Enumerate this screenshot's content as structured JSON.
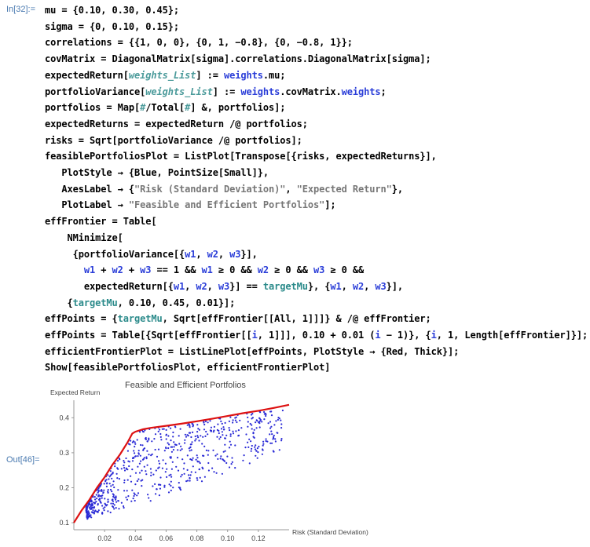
{
  "cell": {
    "in_label": "In[32]:=",
    "out_label": "Out[46]="
  },
  "code_lines": [
    [
      {
        "t": "mu = {0.10, 0.30, 0.45};"
      }
    ],
    [
      {
        "t": "sigma = {0, 0.10, 0.15};"
      }
    ],
    [
      {
        "t": "correlations = {{1, 0, 0}, {0, 1, −0.8}, {0, −0.8, 1}};"
      }
    ],
    [
      {
        "t": "covMatrix = DiagonalMatrix[sigma].correlations.DiagonalMatrix[sigma];"
      }
    ],
    [
      {
        "t": "expectedReturn["
      },
      {
        "t": "weights_List",
        "c": "kw-i"
      },
      {
        "t": "] := "
      },
      {
        "t": "weights",
        "c": "kw-b"
      },
      {
        "t": ".mu;"
      }
    ],
    [
      {
        "t": "portfolioVariance["
      },
      {
        "t": "weights_List",
        "c": "kw-i"
      },
      {
        "t": "] := "
      },
      {
        "t": "weights",
        "c": "kw-b"
      },
      {
        "t": ".covMatrix."
      },
      {
        "t": "weights",
        "c": "kw-b"
      },
      {
        "t": ";"
      }
    ],
    [
      {
        "t": "portfolios = Map["
      },
      {
        "t": "#",
        "c": "kw-i"
      },
      {
        "t": "/Total["
      },
      {
        "t": "#",
        "c": "kw-i"
      },
      {
        "t": "] &, portfolios];"
      }
    ],
    [
      {
        "t": "expectedReturns = expectedReturn /@ portfolios;"
      }
    ],
    [
      {
        "t": "risks = Sqrt[portfolioVariance /@ portfolios];"
      }
    ],
    [
      {
        "t": "feasiblePortfoliosPlot = ListPlot[Transpose[{risks, expectedReturns}],"
      }
    ],
    [
      {
        "t": "   PlotStyle → {Blue, PointSize[Small]},"
      }
    ],
    [
      {
        "t": "   AxesLabel → {"
      },
      {
        "t": "\"Risk (Standard Deviation)\"",
        "c": "str"
      },
      {
        "t": ", "
      },
      {
        "t": "\"Expected Return\"",
        "c": "str"
      },
      {
        "t": "},"
      }
    ],
    [
      {
        "t": "   PlotLabel → "
      },
      {
        "t": "\"Feasible and Efficient Portfolios\"",
        "c": "str"
      },
      {
        "t": "];"
      }
    ],
    [
      {
        "t": "effFrontier = Table["
      }
    ],
    [
      {
        "t": "    NMinimize["
      }
    ],
    [
      {
        "t": "     {portfolioVariance[{"
      },
      {
        "t": "w1",
        "c": "kw-b"
      },
      {
        "t": ", "
      },
      {
        "t": "w2",
        "c": "kw-b"
      },
      {
        "t": ", "
      },
      {
        "t": "w3",
        "c": "kw-b"
      },
      {
        "t": "}],"
      }
    ],
    [
      {
        "t": "       "
      },
      {
        "t": "w1",
        "c": "kw-b"
      },
      {
        "t": " + "
      },
      {
        "t": "w2",
        "c": "kw-b"
      },
      {
        "t": " + "
      },
      {
        "t": "w3",
        "c": "kw-b"
      },
      {
        "t": " == 1 && "
      },
      {
        "t": "w1",
        "c": "kw-b"
      },
      {
        "t": " ≥ 0 && "
      },
      {
        "t": "w2",
        "c": "kw-b"
      },
      {
        "t": " ≥ 0 && "
      },
      {
        "t": "w3",
        "c": "kw-b"
      },
      {
        "t": " ≥ 0 &&"
      }
    ],
    [
      {
        "t": "       expectedReturn[{"
      },
      {
        "t": "w1",
        "c": "kw-b"
      },
      {
        "t": ", "
      },
      {
        "t": "w2",
        "c": "kw-b"
      },
      {
        "t": ", "
      },
      {
        "t": "w3",
        "c": "kw-b"
      },
      {
        "t": "}] == "
      },
      {
        "t": "targetMu",
        "c": "kw-t"
      },
      {
        "t": "}, {"
      },
      {
        "t": "w1",
        "c": "kw-b"
      },
      {
        "t": ", "
      },
      {
        "t": "w2",
        "c": "kw-b"
      },
      {
        "t": ", "
      },
      {
        "t": "w3",
        "c": "kw-b"
      },
      {
        "t": "}],"
      }
    ],
    [
      {
        "t": "    {"
      },
      {
        "t": "targetMu",
        "c": "kw-t"
      },
      {
        "t": ", 0.10, 0.45, 0.01}];"
      }
    ],
    [
      {
        "t": "effPoints = {"
      },
      {
        "t": "targetMu",
        "c": "kw-t"
      },
      {
        "t": ", Sqrt[effFrontier[[All, 1]]]} & /@ effFrontier;"
      }
    ],
    [
      {
        "t": "effPoints = Table[{Sqrt[effFrontier[["
      },
      {
        "t": "i",
        "c": "kw-b"
      },
      {
        "t": ", 1]]], 0.10 + 0.01 ("
      },
      {
        "t": "i",
        "c": "kw-b"
      },
      {
        "t": " − 1)}, {"
      },
      {
        "t": "i",
        "c": "kw-b"
      },
      {
        "t": ", 1, Length[effFrontier]}];"
      }
    ],
    [
      {
        "t": "efficientFrontierPlot = ListLinePlot[effPoints, PlotStyle → {Red, Thick}];"
      }
    ],
    [
      {
        "t": "Show[feasiblePortfoliosPlot, efficientFrontierPlot]"
      }
    ]
  ],
  "chart_data": {
    "type": "scatter",
    "title": "Feasible and Efficient Portfolios",
    "xlabel": "Risk (Standard Deviation)",
    "ylabel": "Expected Return",
    "xlim": [
      0,
      0.14
    ],
    "ylim": [
      0.08,
      0.45
    ],
    "x_ticks": [
      0.02,
      0.04,
      0.06,
      0.08,
      0.1,
      0.12
    ],
    "y_ticks": [
      0.1,
      0.2,
      0.3,
      0.4
    ],
    "x_tick_labels": [
      "0.02",
      "0.04",
      "0.06",
      "0.08",
      "0.10",
      "0.12"
    ],
    "y_tick_labels": [
      "0.1",
      "0.2",
      "0.3",
      "0.4"
    ],
    "series": [
      {
        "style": "points",
        "color": "#2b2bd6",
        "count": 700,
        "description_region": "feasible set between frontier lines"
      },
      {
        "style": "line",
        "color": "#dd1111",
        "points": [
          [
            0.0,
            0.1
          ],
          [
            0.005,
            0.135
          ],
          [
            0.01,
            0.165
          ],
          [
            0.015,
            0.2
          ],
          [
            0.02,
            0.23
          ],
          [
            0.025,
            0.265
          ],
          [
            0.03,
            0.295
          ],
          [
            0.035,
            0.33
          ],
          [
            0.038,
            0.355
          ],
          [
            0.04,
            0.36
          ],
          [
            0.045,
            0.367
          ],
          [
            0.05,
            0.371
          ],
          [
            0.06,
            0.377
          ],
          [
            0.07,
            0.383
          ],
          [
            0.08,
            0.39
          ],
          [
            0.09,
            0.397
          ],
          [
            0.1,
            0.405
          ],
          [
            0.11,
            0.413
          ],
          [
            0.12,
            0.42
          ],
          [
            0.13,
            0.428
          ],
          [
            0.14,
            0.437
          ]
        ]
      }
    ]
  }
}
